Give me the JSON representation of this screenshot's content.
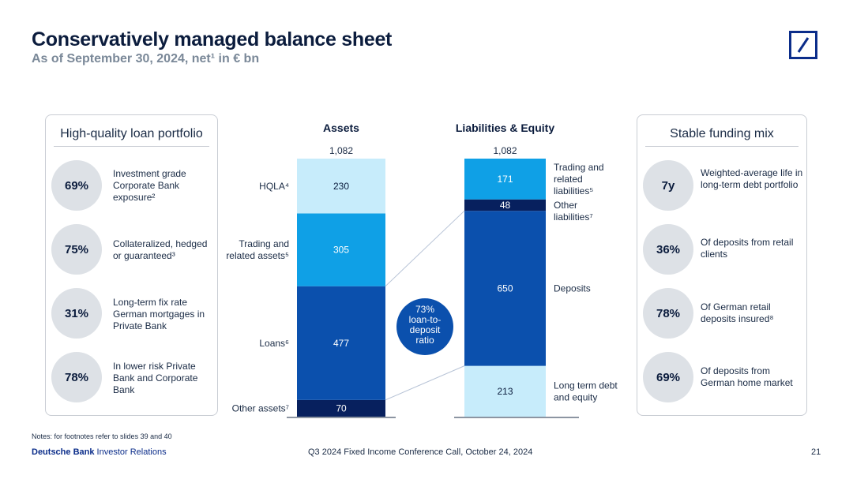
{
  "header": {
    "title": "Conservatively managed balance sheet",
    "subtitle": "As of September 30, 2024, net¹ in € bn"
  },
  "left_panel": {
    "title": "High-quality loan portfolio",
    "items": [
      {
        "value": "69%",
        "text": "Investment grade Corporate Bank exposure²"
      },
      {
        "value": "75%",
        "text": "Collateralized, hedged or guaranteed³"
      },
      {
        "value": "31%",
        "text": "Long-term fix rate German mortgages in Private Bank"
      },
      {
        "value": "78%",
        "text": "In lower risk Private Bank and Corporate Bank"
      }
    ]
  },
  "right_panel": {
    "title": "Stable funding mix",
    "items": [
      {
        "value": "7y",
        "text": "Weighted-average life  in long-term debt portfolio"
      },
      {
        "value": "36%",
        "text": "Of deposits from retail clients"
      },
      {
        "value": "78%",
        "text": "Of German retail deposits insured⁸"
      },
      {
        "value": "69%",
        "text": "Of deposits from German home market"
      }
    ]
  },
  "chart_data": {
    "type": "bar",
    "stacked": true,
    "scale_max": 1082,
    "bars": [
      {
        "name": "Assets",
        "total_label": "1,082",
        "segments": [
          {
            "name": "Other assets⁷",
            "value": 70,
            "color": "#07205e"
          },
          {
            "name": "Loans⁶",
            "value": 477,
            "color": "#0b50ad"
          },
          {
            "name": "Trading and related assets⁵",
            "value": 305,
            "color": "#0fa0e6"
          },
          {
            "name": "HQLA⁴",
            "value": 230,
            "color": "#c7ecfb"
          }
        ]
      },
      {
        "name": "Liabilities & Equity",
        "total_label": "1,082",
        "segments": [
          {
            "name": "Long term debt and equity",
            "value": 213,
            "color": "#c7ecfb"
          },
          {
            "name": "Deposits",
            "value": 650,
            "color": "#0b50ad"
          },
          {
            "name": "Other liabilities⁷",
            "value": 48,
            "color": "#07205e"
          },
          {
            "name": "Trading and related liabilities⁵",
            "value": 171,
            "color": "#0fa0e6"
          }
        ]
      }
    ],
    "annotation": "73% loan-to-deposit ratio"
  },
  "footer": {
    "note": "Notes: for footnotes refer to slides 39 and 40",
    "brand_bold": "Deutsche Bank",
    "brand_rest": " Investor Relations",
    "center": "Q3 2024 Fixed Income Conference Call, October 24, 2024",
    "page": "21"
  }
}
